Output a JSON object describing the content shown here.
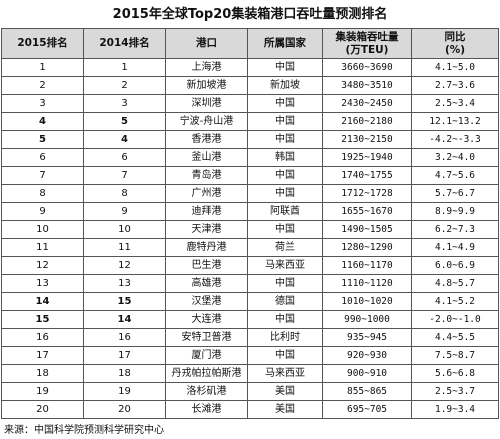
{
  "title": "2015年全球Top20集装箱港口吞吐量预测排名",
  "headers": {
    "rank2015": "2015排名",
    "rank2014": "2014排名",
    "port": "港口",
    "country": "所属国家",
    "throughput_line1": "集装箱吞吐量",
    "throughput_line2": "(万TEU)",
    "growth_line1": "同比",
    "growth_line2": "(%)"
  },
  "rows": [
    {
      "r15": "1",
      "r14": "1",
      "port": "上海港",
      "country": "中国",
      "tp": "3660~3690",
      "g": "4.1~5.0",
      "bold": false
    },
    {
      "r15": "2",
      "r14": "2",
      "port": "新加坡港",
      "country": "新加坡",
      "tp": "3480~3510",
      "g": "2.7~3.6",
      "bold": false
    },
    {
      "r15": "3",
      "r14": "3",
      "port": "深圳港",
      "country": "中国",
      "tp": "2430~2450",
      "g": "2.5~3.4",
      "bold": false
    },
    {
      "r15": "4",
      "r14": "5",
      "port": "宁波-舟山港",
      "country": "中国",
      "tp": "2160~2180",
      "g": "12.1~13.2",
      "bold": true
    },
    {
      "r15": "5",
      "r14": "4",
      "port": "香港港",
      "country": "中国",
      "tp": "2130~2150",
      "g": "-4.2~-3.3",
      "bold": true
    },
    {
      "r15": "6",
      "r14": "6",
      "port": "釜山港",
      "country": "韩国",
      "tp": "1925~1940",
      "g": "3.2~4.0",
      "bold": false
    },
    {
      "r15": "7",
      "r14": "7",
      "port": "青岛港",
      "country": "中国",
      "tp": "1740~1755",
      "g": "4.7~5.6",
      "bold": false
    },
    {
      "r15": "8",
      "r14": "8",
      "port": "广州港",
      "country": "中国",
      "tp": "1712~1728",
      "g": "5.7~6.7",
      "bold": false
    },
    {
      "r15": "9",
      "r14": "9",
      "port": "迪拜港",
      "country": "阿联酋",
      "tp": "1655~1670",
      "g": "8.9~9.9",
      "bold": false
    },
    {
      "r15": "10",
      "r14": "10",
      "port": "天津港",
      "country": "中国",
      "tp": "1490~1505",
      "g": "6.2~7.3",
      "bold": false
    },
    {
      "r15": "11",
      "r14": "11",
      "port": "鹿特丹港",
      "country": "荷兰",
      "tp": "1280~1290",
      "g": "4.1~4.9",
      "bold": false
    },
    {
      "r15": "12",
      "r14": "12",
      "port": "巴生港",
      "country": "马来西亚",
      "tp": "1160~1170",
      "g": "6.0~6.9",
      "bold": false
    },
    {
      "r15": "13",
      "r14": "13",
      "port": "高雄港",
      "country": "中国",
      "tp": "1110~1120",
      "g": "4.8~5.7",
      "bold": false
    },
    {
      "r15": "14",
      "r14": "15",
      "port": "汉堡港",
      "country": "德国",
      "tp": "1010~1020",
      "g": "4.1~5.2",
      "bold": true
    },
    {
      "r15": "15",
      "r14": "14",
      "port": "大连港",
      "country": "中国",
      "tp": "990~1000",
      "g": "-2.0~-1.0",
      "bold": true
    },
    {
      "r15": "16",
      "r14": "16",
      "port": "安特卫普港",
      "country": "比利时",
      "tp": "935~945",
      "g": "4.4~5.5",
      "bold": false
    },
    {
      "r15": "17",
      "r14": "17",
      "port": "厦门港",
      "country": "中国",
      "tp": "920~930",
      "g": "7.5~8.7",
      "bold": false
    },
    {
      "r15": "18",
      "r14": "18",
      "port": "丹戎帕拉帕斯港",
      "country": "马来西亚",
      "tp": "900~910",
      "g": "5.6~6.8",
      "bold": false
    },
    {
      "r15": "19",
      "r14": "19",
      "port": "洛杉矶港",
      "country": "美国",
      "tp": "855~865",
      "g": "2.5~3.7",
      "bold": false
    },
    {
      "r15": "20",
      "r14": "20",
      "port": "长滩港",
      "country": "美国",
      "tp": "695~705",
      "g": "1.9~3.4",
      "bold": false
    }
  ],
  "source": "来源：中国科学院预测科学研究中心"
}
